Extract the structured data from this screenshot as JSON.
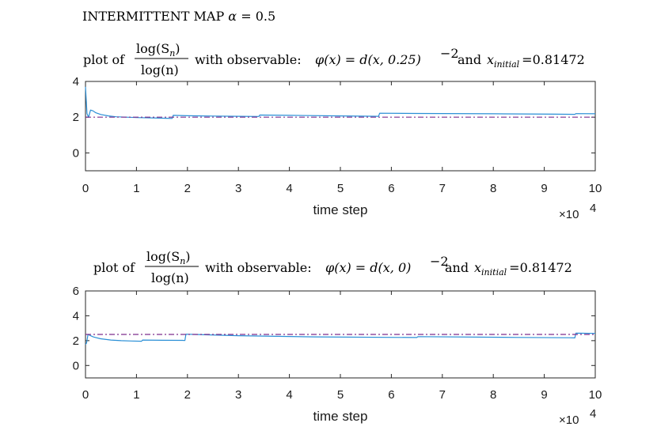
{
  "figure_title": {
    "text": "INTERMITTENT MAP",
    "alpha_symbol": "α",
    "alpha_value": "= 0.5"
  },
  "chart_data": [
    {
      "type": "line",
      "title": {
        "prefix": "plot of",
        "fraction_numerator": "log(S",
        "numerator_subscript": "n",
        "fraction_denominator": "log(n)",
        "observable_label": "with observable:",
        "observable_formula": "φ(x) = d(x, 0.25)",
        "observable_exponent": "−2",
        "and_label": "and",
        "initial_symbol": "x",
        "initial_subscript": "initial",
        "initial_value": "=0.81472"
      },
      "xlabel": "time step",
      "x_multiplier": "×10",
      "x_multiplier_exponent": "4",
      "xlim": [
        0,
        10
      ],
      "ylim": [
        -1,
        4
      ],
      "xticks": [
        0,
        1,
        2,
        3,
        4,
        5,
        6,
        7,
        8,
        9,
        10
      ],
      "yticks": [
        0,
        2,
        4
      ],
      "grid": false,
      "series": [
        {
          "style": "solid",
          "color": "#2a8fd6",
          "x": [
            0,
            0.03,
            0.06,
            0.1,
            0.15,
            0.2,
            0.3,
            0.45,
            0.6,
            0.8,
            1.0,
            1.3,
            1.6,
            1.7,
            1.72,
            2.0,
            2.5,
            3.0,
            3.4,
            3.42,
            4.0,
            5.0,
            5.75,
            5.77,
            6.5,
            8.0,
            9.2,
            9.6,
            9.62,
            10.0
          ],
          "y": [
            3.7,
            2.2,
            2.0,
            2.4,
            2.35,
            2.25,
            2.15,
            2.07,
            2.02,
            2.0,
            1.98,
            1.96,
            1.94,
            1.93,
            2.1,
            2.08,
            2.06,
            2.05,
            2.04,
            2.12,
            2.1,
            2.07,
            2.05,
            2.22,
            2.21,
            2.19,
            2.17,
            2.16,
            2.2,
            2.19
          ]
        },
        {
          "style": "dashdot",
          "color": "#7e2f8e",
          "x": [
            0,
            10
          ],
          "y": [
            2.0,
            2.0
          ]
        }
      ]
    },
    {
      "type": "line",
      "title": {
        "prefix": "plot of",
        "fraction_numerator": "log(S",
        "numerator_subscript": "n",
        "fraction_denominator": "log(n)",
        "observable_label": "with observable:",
        "observable_formula": "φ(x) = d(x, 0)",
        "observable_exponent": "−2",
        "and_label": "and",
        "initial_symbol": "x",
        "initial_subscript": "initial",
        "initial_value": "=0.81472"
      },
      "xlabel": "time step",
      "x_multiplier": "×10",
      "x_multiplier_exponent": "4",
      "xlim": [
        0,
        10
      ],
      "ylim": [
        -1,
        6
      ],
      "xticks": [
        0,
        1,
        2,
        3,
        4,
        5,
        6,
        7,
        8,
        9,
        10
      ],
      "yticks": [
        0,
        2,
        4,
        6
      ],
      "grid": false,
      "series": [
        {
          "style": "solid",
          "color": "#2a8fd6",
          "x": [
            0,
            0.02,
            0.05,
            0.1,
            0.15,
            0.2,
            0.3,
            0.5,
            0.7,
            0.9,
            1.1,
            1.12,
            1.5,
            1.9,
            1.95,
            1.97,
            3.0,
            4.5,
            6.5,
            6.52,
            8.5,
            9.5,
            9.6,
            9.62,
            10.0
          ],
          "y": [
            1.7,
            1.8,
            2.5,
            2.4,
            2.3,
            2.25,
            2.15,
            2.05,
            2.0,
            1.97,
            1.95,
            2.05,
            2.03,
            2.02,
            2.01,
            2.52,
            2.4,
            2.3,
            2.25,
            2.32,
            2.26,
            2.23,
            2.22,
            2.6,
            2.58
          ]
        },
        {
          "style": "dashdot",
          "color": "#7e2f8e",
          "x": [
            0,
            10
          ],
          "y": [
            2.5,
            2.5
          ]
        }
      ]
    }
  ]
}
